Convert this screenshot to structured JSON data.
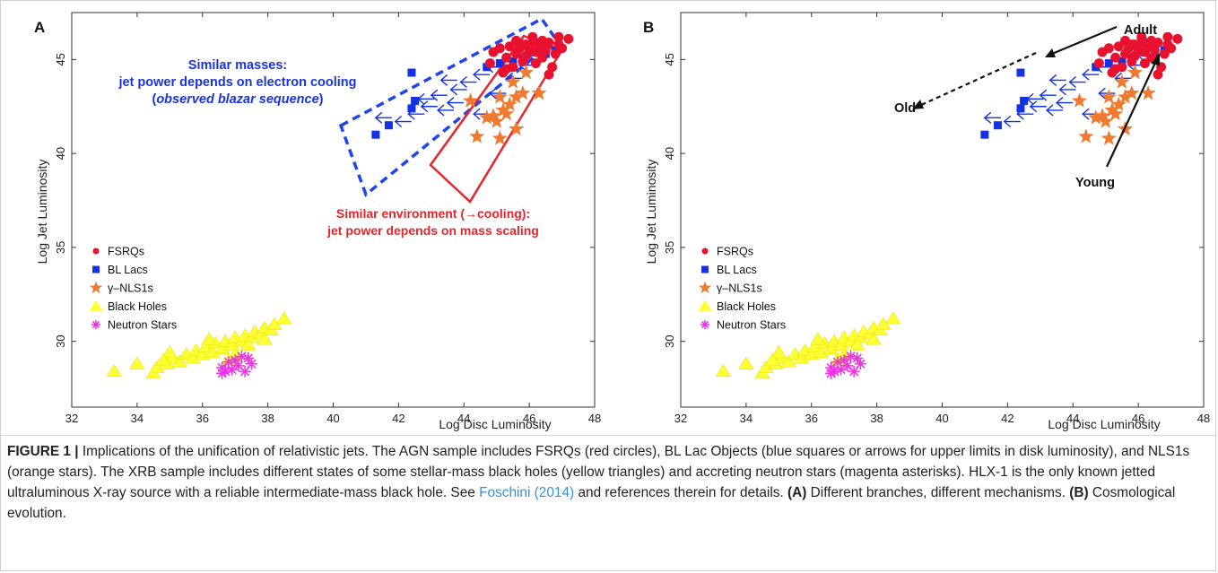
{
  "chart_data": [
    {
      "panel": "A",
      "type": "scatter",
      "xlabel": "Log Disc Luminosity",
      "ylabel": "Log Jet Luminosity",
      "xlim": [
        32,
        48
      ],
      "ylim": [
        26.5,
        47.5
      ],
      "xticks": [
        32,
        34,
        36,
        38,
        40,
        42,
        44,
        46,
        48
      ],
      "yticks": [
        30,
        35,
        40,
        45
      ],
      "legend": {
        "placement": "left-middle",
        "entries": [
          "FSRQs",
          "BL Lacs",
          "γ–NLS1s",
          "Black Holes",
          "Neutron Stars"
        ]
      },
      "annotations": {
        "blue_box": {
          "line1": "Similar masses:",
          "line2": "jet power depends on electron cooling",
          "line3_open": "(",
          "line3_italic": "observed blazar sequence",
          "line3_close": ")"
        },
        "red_box": {
          "line1": "Similar environment (→cooling):",
          "line2": "jet power depends on mass scaling"
        }
      }
    },
    {
      "panel": "B",
      "type": "scatter",
      "xlabel": "Log Disc Luminosity",
      "ylabel": "Log Jet Luminosity",
      "xlim": [
        32,
        48
      ],
      "ylim": [
        26.5,
        47.5
      ],
      "xticks": [
        32,
        34,
        36,
        38,
        40,
        42,
        44,
        46,
        48
      ],
      "yticks": [
        30,
        35,
        40,
        45
      ],
      "legend": {
        "placement": "left-middle",
        "entries": [
          "FSRQs",
          "BL Lacs",
          "γ–NLS1s",
          "Black Holes",
          "Neutron Stars"
        ]
      },
      "annotations": {
        "adult": "Adult",
        "old": "Old",
        "young": "Young"
      }
    }
  ],
  "series_points": {
    "fsrqs": [
      [
        44.8,
        44.8
      ],
      [
        44.9,
        45.4
      ],
      [
        45.1,
        45.6
      ],
      [
        45.3,
        45.1
      ],
      [
        45.4,
        45.7
      ],
      [
        45.5,
        44.6
      ],
      [
        45.6,
        45.3
      ],
      [
        45.7,
        45.6
      ],
      [
        45.8,
        44.9
      ],
      [
        45.8,
        45.8
      ],
      [
        45.9,
        45.2
      ],
      [
        46.0,
        45.5
      ],
      [
        46.1,
        45.9
      ],
      [
        46.2,
        44.8
      ],
      [
        46.2,
        45.4
      ],
      [
        46.3,
        45.7
      ],
      [
        46.4,
        45.1
      ],
      [
        46.5,
        45.5
      ],
      [
        46.6,
        45.9
      ],
      [
        46.7,
        44.6
      ],
      [
        46.8,
        45.3
      ],
      [
        46.9,
        45.8
      ],
      [
        47.0,
        45.6
      ],
      [
        47.2,
        46.1
      ],
      [
        46.6,
        44.2
      ],
      [
        45.2,
        44.3
      ],
      [
        45.9,
        45.8
      ],
      [
        46.1,
        46.2
      ],
      [
        46.4,
        46.0
      ],
      [
        45.6,
        46.0
      ],
      [
        46.9,
        46.2
      ],
      [
        45.3,
        44.5
      ]
    ],
    "bl_lacs": [
      [
        41.3,
        41.0
      ],
      [
        41.7,
        41.5
      ],
      [
        42.4,
        42.4
      ],
      [
        42.5,
        42.8
      ],
      [
        42.4,
        44.3
      ],
      [
        44.7,
        44.6
      ],
      [
        45.1,
        44.8
      ],
      [
        45.8,
        45.1
      ],
      [
        46.0,
        45.6
      ],
      [
        46.2,
        45.9
      ],
      [
        46.5,
        45.3
      ],
      [
        45.5,
        44.9
      ],
      [
        46.8,
        45.5
      ]
    ],
    "bl_lac_limits": [
      [
        41.6,
        41.9
      ],
      [
        42.2,
        41.7
      ],
      [
        42.6,
        42.1
      ],
      [
        43.0,
        42.5
      ],
      [
        42.9,
        42.9
      ],
      [
        43.3,
        43.1
      ],
      [
        43.5,
        42.3
      ],
      [
        43.8,
        42.7
      ],
      [
        43.9,
        43.4
      ],
      [
        44.2,
        43.8
      ],
      [
        44.6,
        44.2
      ],
      [
        45.0,
        44.6
      ],
      [
        44.6,
        42.1
      ],
      [
        45.1,
        43.2
      ],
      [
        45.6,
        44.0
      ],
      [
        46.0,
        44.7
      ],
      [
        46.3,
        45.2
      ],
      [
        43.6,
        43.9
      ]
    ],
    "nls1s": [
      [
        44.2,
        42.8
      ],
      [
        44.4,
        40.9
      ],
      [
        44.7,
        41.9
      ],
      [
        45.1,
        40.8
      ],
      [
        45.2,
        42.3
      ],
      [
        45.4,
        42.6
      ],
      [
        45.6,
        41.3
      ],
      [
        45.8,
        43.2
      ],
      [
        46.3,
        43.2
      ],
      [
        45.0,
        41.7
      ],
      [
        44.9,
        42.0
      ],
      [
        45.5,
        43.8
      ],
      [
        45.9,
        44.3
      ],
      [
        45.3,
        42.1
      ],
      [
        45.6,
        43.0
      ],
      [
        45.1,
        43.0
      ]
    ],
    "black_holes": [
      [
        33.3,
        28.4
      ],
      [
        34.0,
        28.8
      ],
      [
        34.5,
        28.3
      ],
      [
        34.6,
        28.6
      ],
      [
        34.9,
        28.8
      ],
      [
        35.1,
        29.1
      ],
      [
        35.3,
        28.9
      ],
      [
        35.5,
        29.3
      ],
      [
        35.7,
        29.1
      ],
      [
        35.8,
        29.5
      ],
      [
        36.0,
        29.3
      ],
      [
        36.1,
        29.7
      ],
      [
        36.3,
        29.4
      ],
      [
        36.4,
        29.9
      ],
      [
        36.6,
        29.6
      ],
      [
        36.7,
        30.0
      ],
      [
        36.9,
        29.8
      ],
      [
        37.0,
        30.2
      ],
      [
        37.2,
        30.0
      ],
      [
        37.3,
        30.3
      ],
      [
        37.5,
        30.2
      ],
      [
        37.6,
        30.5
      ],
      [
        37.8,
        30.4
      ],
      [
        37.9,
        30.7
      ],
      [
        38.1,
        30.6
      ],
      [
        38.2,
        30.9
      ],
      [
        38.5,
        31.2
      ],
      [
        35.0,
        29.4
      ],
      [
        36.2,
        30.1
      ],
      [
        37.0,
        29.3
      ],
      [
        37.4,
        29.8
      ],
      [
        37.9,
        30.1
      ],
      [
        34.8,
        29.0
      ],
      [
        36.8,
        29.0
      ]
    ],
    "neutron_stars": [
      [
        36.6,
        28.3
      ],
      [
        36.6,
        28.6
      ],
      [
        36.8,
        28.9
      ],
      [
        36.9,
        28.5
      ],
      [
        37.0,
        29.0
      ],
      [
        37.1,
        28.7
      ],
      [
        37.2,
        29.2
      ],
      [
        37.3,
        28.4
      ],
      [
        37.4,
        29.1
      ],
      [
        37.5,
        28.8
      ],
      [
        36.7,
        28.4
      ]
    ]
  },
  "caption": {
    "figure_label": "FIGURE 1 |",
    "text_1": " Implications of the unification of relativistic jets. The AGN sample includes FSRQs (red circles), BL Lac Objects (blue squares or arrows for upper limits in disk luminosity), and NLS1s (orange stars). The XRB sample includes different states of some stellar-mass black holes (yellow triangles) and accreting neutron stars (magenta asterisks). HLX-1 is the only known jetted ultraluminous X-ray source with a reliable intermediate-mass black hole. See ",
    "ref_link": "Foschini (2014)",
    "text_2": " and references therein for details. ",
    "panel_a_label": "(A)",
    "panel_a_text": " Different branches, different mechanisms. ",
    "panel_b_label": "(B)",
    "panel_b_text": " Cosmological evolution."
  },
  "colors": {
    "fsrqs": "#e8122f",
    "bl_lacs": "#1332e6",
    "nls1s": "#ef7a30",
    "black_holes": "#ffff33",
    "neutron_stars": "#ee2fe6",
    "blue_text": "#1a33e0",
    "red_text": "#e6262b"
  }
}
